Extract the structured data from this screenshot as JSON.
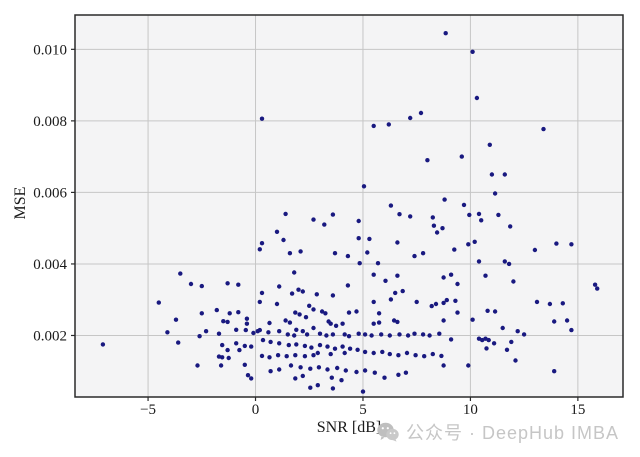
{
  "watermark": {
    "text": "公众号 · DeepHub IMBA",
    "icon": "wechat-icon"
  },
  "chart_data": {
    "type": "scatter",
    "title": "",
    "xlabel": "SNR [dB]",
    "ylabel": "MSE",
    "xlim": [
      -8.4,
      17.1
    ],
    "ylim": [
      0.00028,
      0.01096
    ],
    "xticks": [
      -5,
      0,
      5,
      10,
      15
    ],
    "xtick_labels": [
      "−5",
      "0",
      "5",
      "10",
      "15"
    ],
    "yticks": [
      0.002,
      0.004,
      0.006,
      0.008,
      0.01
    ],
    "ytick_labels": [
      "0.002",
      "0.004",
      "0.006",
      "0.008",
      "0.010"
    ],
    "grid": true,
    "legend": null,
    "plot_bg": "#f4f4f5",
    "grid_color": "#c6c6c6",
    "frame_color": "#2a2a2a",
    "marker_color": "#191980",
    "marker_radius": 2.2,
    "points": [
      [
        8.85,
        0.01045
      ],
      [
        10.1,
        0.00993
      ],
      [
        10.3,
        0.00864
      ],
      [
        7.7,
        0.00822
      ],
      [
        7.2,
        0.00808
      ],
      [
        0.3,
        0.00806
      ],
      [
        6.2,
        0.0079
      ],
      [
        5.5,
        0.00786
      ],
      [
        13.4,
        0.00777
      ],
      [
        10.9,
        0.00733
      ],
      [
        9.6,
        0.007
      ],
      [
        8.0,
        0.0069
      ],
      [
        11.0,
        0.0065
      ],
      [
        11.6,
        0.0065
      ],
      [
        5.05,
        0.00617
      ],
      [
        11.15,
        0.00597
      ],
      [
        8.8,
        0.0058
      ],
      [
        9.7,
        0.00565
      ],
      [
        6.3,
        0.00563
      ],
      [
        6.7,
        0.00539
      ],
      [
        10.4,
        0.0054
      ],
      [
        1.4,
        0.0054
      ],
      [
        3.6,
        0.00538
      ],
      [
        9.95,
        0.00537
      ],
      [
        11.3,
        0.00537
      ],
      [
        7.2,
        0.00533
      ],
      [
        8.25,
        0.0053
      ],
      [
        2.7,
        0.00524
      ],
      [
        10.5,
        0.00522
      ],
      [
        4.8,
        0.0052
      ],
      [
        3.2,
        0.0051
      ],
      [
        8.3,
        0.00507
      ],
      [
        11.85,
        0.00505
      ],
      [
        8.7,
        0.005
      ],
      [
        1.0,
        0.0049
      ],
      [
        8.45,
        0.00488
      ],
      [
        4.8,
        0.00472
      ],
      [
        5.3,
        0.0047
      ],
      [
        1.3,
        0.00467
      ],
      [
        10.2,
        0.00462
      ],
      [
        6.6,
        0.0046
      ],
      [
        0.3,
        0.00458
      ],
      [
        14.0,
        0.00457
      ],
      [
        9.9,
        0.00455
      ],
      [
        14.7,
        0.00455
      ],
      [
        0.2,
        0.00441
      ],
      [
        9.25,
        0.0044
      ],
      [
        13.0,
        0.00439
      ],
      [
        2.1,
        0.00435
      ],
      [
        1.6,
        0.0043
      ],
      [
        3.7,
        0.0043
      ],
      [
        7.8,
        0.0043
      ],
      [
        5.2,
        0.00432
      ],
      [
        4.3,
        0.00422
      ],
      [
        7.4,
        0.00422
      ],
      [
        10.4,
        0.00407
      ],
      [
        11.6,
        0.00407
      ],
      [
        5.7,
        0.00402
      ],
      [
        4.85,
        0.00402
      ],
      [
        11.8,
        0.004
      ],
      [
        -3.5,
        0.00373
      ],
      [
        -3.0,
        0.00344
      ],
      [
        -2.5,
        0.00338
      ],
      [
        -1.3,
        0.00346
      ],
      [
        -0.8,
        0.00342
      ],
      [
        -4.5,
        0.00292
      ],
      [
        -3.7,
        0.00244
      ],
      [
        -2.5,
        0.00262
      ],
      [
        -1.8,
        0.00271
      ],
      [
        -1.2,
        0.00262
      ],
      [
        -0.8,
        0.00265
      ],
      [
        -1.5,
        0.0024
      ],
      [
        -1.3,
        0.00238
      ],
      [
        -0.4,
        0.00247
      ],
      [
        -0.4,
        0.00233
      ],
      [
        -4.1,
        0.00209
      ],
      [
        -2.3,
        0.00212
      ],
      [
        -1.7,
        0.00205
      ],
      [
        -0.9,
        0.00216
      ],
      [
        -0.45,
        0.00215
      ],
      [
        -0.1,
        0.00207
      ],
      [
        0.1,
        0.00212
      ],
      [
        -7.1,
        0.00175
      ],
      [
        -2.6,
        0.00198
      ],
      [
        -3.6,
        0.0018
      ],
      [
        -1.55,
        0.00173
      ],
      [
        -1.3,
        0.00159
      ],
      [
        -0.9,
        0.00178
      ],
      [
        -0.75,
        0.00159
      ],
      [
        -0.5,
        0.00171
      ],
      [
        -0.2,
        0.00169
      ],
      [
        -1.7,
        0.00141
      ],
      [
        -1.55,
        0.00139
      ],
      [
        -1.25,
        0.00137
      ],
      [
        -2.7,
        0.00116
      ],
      [
        -1.6,
        0.00116
      ],
      [
        -0.5,
        0.00118
      ],
      [
        -0.35,
        0.00089
      ],
      [
        -0.2,
        0.0008
      ],
      [
        1.8,
        0.00376
      ],
      [
        5.5,
        0.0037
      ],
      [
        6.6,
        0.00367
      ],
      [
        6.05,
        0.00353
      ],
      [
        4.3,
        0.0034
      ],
      [
        1.1,
        0.00337
      ],
      [
        2.0,
        0.00328
      ],
      [
        2.2,
        0.00323
      ],
      [
        0.3,
        0.00319
      ],
      [
        1.7,
        0.00317
      ],
      [
        2.85,
        0.00315
      ],
      [
        3.6,
        0.00312
      ],
      [
        0.2,
        0.00294
      ],
      [
        6.85,
        0.00324
      ],
      [
        6.5,
        0.00319
      ],
      [
        6.3,
        0.00301
      ],
      [
        5.5,
        0.00294
      ],
      [
        7.5,
        0.00294
      ],
      [
        8.4,
        0.00288
      ],
      [
        8.2,
        0.00282
      ],
      [
        1.0,
        0.00288
      ],
      [
        2.5,
        0.00283
      ],
      [
        2.7,
        0.00273
      ],
      [
        1.85,
        0.00264
      ],
      [
        2.05,
        0.00259
      ],
      [
        2.35,
        0.00251
      ],
      [
        1.4,
        0.00242
      ],
      [
        1.6,
        0.00236
      ],
      [
        0.65,
        0.00235
      ],
      [
        3.1,
        0.00267
      ],
      [
        3.25,
        0.00262
      ],
      [
        4.35,
        0.00264
      ],
      [
        4.7,
        0.00267
      ],
      [
        5.75,
        0.00262
      ],
      [
        6.45,
        0.00242
      ],
      [
        6.6,
        0.00238
      ],
      [
        5.75,
        0.00236
      ],
      [
        5.5,
        0.00233
      ],
      [
        3.4,
        0.00239
      ],
      [
        3.5,
        0.00233
      ],
      [
        3.75,
        0.00227
      ],
      [
        4.05,
        0.00233
      ],
      [
        2.7,
        0.00221
      ],
      [
        1.9,
        0.00216
      ],
      [
        2.2,
        0.00212
      ],
      [
        1.1,
        0.00212
      ],
      [
        0.6,
        0.00209
      ],
      [
        0.2,
        0.00215
      ],
      [
        1.5,
        0.00203
      ],
      [
        1.8,
        0.002
      ],
      [
        2.4,
        0.00203
      ],
      [
        3.0,
        0.00205
      ],
      [
        3.3,
        0.002
      ],
      [
        3.6,
        0.00203
      ],
      [
        4.15,
        0.00203
      ],
      [
        4.35,
        0.00198
      ],
      [
        4.8,
        0.00205
      ],
      [
        5.1,
        0.00203
      ],
      [
        5.4,
        0.002
      ],
      [
        5.85,
        0.00203
      ],
      [
        6.25,
        0.002
      ],
      [
        6.7,
        0.00203
      ],
      [
        7.1,
        0.002
      ],
      [
        7.4,
        0.00205
      ],
      [
        7.8,
        0.00203
      ],
      [
        8.1,
        0.002
      ],
      [
        8.55,
        0.00205
      ],
      [
        0.35,
        0.00187
      ],
      [
        0.7,
        0.00182
      ],
      [
        1.1,
        0.00178
      ],
      [
        1.55,
        0.00173
      ],
      [
        1.9,
        0.00175
      ],
      [
        2.3,
        0.00171
      ],
      [
        2.6,
        0.00166
      ],
      [
        3.0,
        0.00173
      ],
      [
        3.35,
        0.00169
      ],
      [
        3.7,
        0.00163
      ],
      [
        4.05,
        0.00169
      ],
      [
        4.4,
        0.00163
      ],
      [
        4.75,
        0.0016
      ],
      [
        4.15,
        0.00151
      ],
      [
        3.5,
        0.00148
      ],
      [
        2.9,
        0.00151
      ],
      [
        2.7,
        0.00145
      ],
      [
        2.3,
        0.00142
      ],
      [
        1.85,
        0.00145
      ],
      [
        1.45,
        0.00142
      ],
      [
        1.05,
        0.00145
      ],
      [
        0.65,
        0.00139
      ],
      [
        0.3,
        0.00143
      ],
      [
        5.1,
        0.00154
      ],
      [
        5.5,
        0.00151
      ],
      [
        5.9,
        0.00154
      ],
      [
        6.25,
        0.00148
      ],
      [
        6.65,
        0.00145
      ],
      [
        7.05,
        0.00151
      ],
      [
        7.45,
        0.00145
      ],
      [
        7.85,
        0.00142
      ],
      [
        8.25,
        0.00148
      ],
      [
        8.65,
        0.00143
      ],
      [
        1.65,
        0.00116
      ],
      [
        2.1,
        0.00111
      ],
      [
        2.55,
        0.00107
      ],
      [
        2.95,
        0.00111
      ],
      [
        3.35,
        0.00105
      ],
      [
        3.8,
        0.00109
      ],
      [
        1.1,
        0.00105
      ],
      [
        0.7,
        0.001
      ],
      [
        4.2,
        0.00102
      ],
      [
        4.7,
        0.00098
      ],
      [
        5.1,
        0.00102
      ],
      [
        5.55,
        0.00096
      ],
      [
        2.2,
        0.00087
      ],
      [
        1.85,
        0.0008
      ],
      [
        3.55,
        0.00082
      ],
      [
        4.0,
        0.00075
      ],
      [
        6.0,
        0.00082
      ],
      [
        2.9,
        0.00061
      ],
      [
        2.55,
        0.00054
      ],
      [
        3.6,
        0.00052
      ],
      [
        5.0,
        0.00043
      ],
      [
        6.65,
        0.0009
      ],
      [
        7.0,
        0.00096
      ],
      [
        9.1,
        0.0037
      ],
      [
        9.4,
        0.00344
      ],
      [
        10.7,
        0.00367
      ],
      [
        12.0,
        0.00351
      ],
      [
        15.8,
        0.00342
      ],
      [
        15.9,
        0.00331
      ],
      [
        9.3,
        0.00297
      ],
      [
        8.75,
        0.00362
      ],
      [
        8.75,
        0.00291
      ],
      [
        10.8,
        0.00269
      ],
      [
        11.15,
        0.00267
      ],
      [
        8.9,
        0.00299
      ],
      [
        9.4,
        0.00264
      ],
      [
        8.75,
        0.00242
      ],
      [
        10.1,
        0.00244
      ],
      [
        13.1,
        0.00294
      ],
      [
        13.7,
        0.00288
      ],
      [
        14.3,
        0.0029
      ],
      [
        13.9,
        0.00239
      ],
      [
        14.5,
        0.00242
      ],
      [
        14.7,
        0.00215
      ],
      [
        11.5,
        0.00221
      ],
      [
        12.2,
        0.00212
      ],
      [
        12.5,
        0.00203
      ],
      [
        9.1,
        0.00189
      ],
      [
        10.4,
        0.00191
      ],
      [
        10.55,
        0.00187
      ],
      [
        10.7,
        0.00191
      ],
      [
        10.85,
        0.00187
      ],
      [
        11.1,
        0.00178
      ],
      [
        10.75,
        0.00164
      ],
      [
        11.7,
        0.0016
      ],
      [
        11.9,
        0.00182
      ],
      [
        12.1,
        0.0013
      ],
      [
        13.9,
        0.001
      ],
      [
        9.9,
        0.00116
      ],
      [
        8.75,
        0.00116
      ]
    ]
  }
}
